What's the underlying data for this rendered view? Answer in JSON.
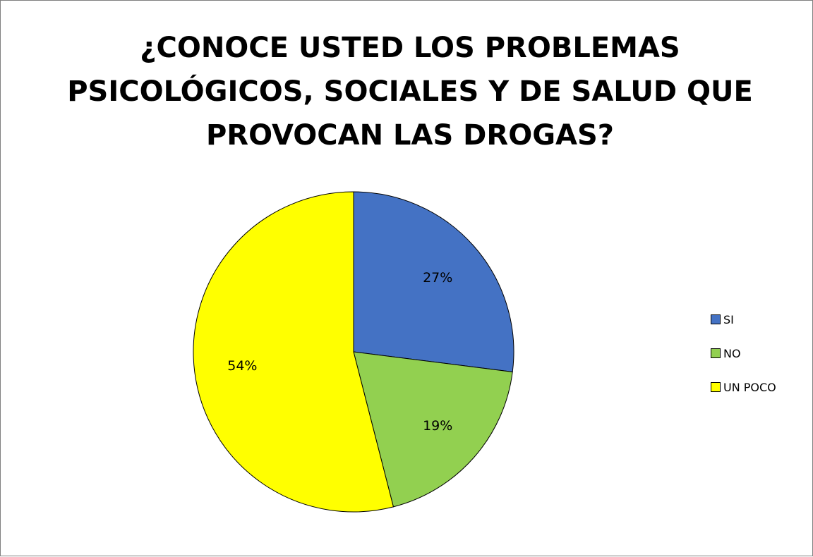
{
  "chart_data": {
    "type": "pie",
    "title_lines": [
      "¿CONOCE USTED LOS PROBLEMAS",
      "PSICOLÓGICOS, SOCIALES Y DE SALUD QUE",
      "PROVOCAN LAS DROGAS?"
    ],
    "categories": [
      "SI",
      "NO",
      "UN POCO"
    ],
    "values": [
      27,
      19,
      54
    ],
    "labels": [
      "27%",
      "19%",
      "54%"
    ],
    "colors": [
      "#4472C4",
      "#92D050",
      "#FFFF00"
    ],
    "legend_position": "right",
    "start_angle": "12 o'clock, clockwise"
  }
}
